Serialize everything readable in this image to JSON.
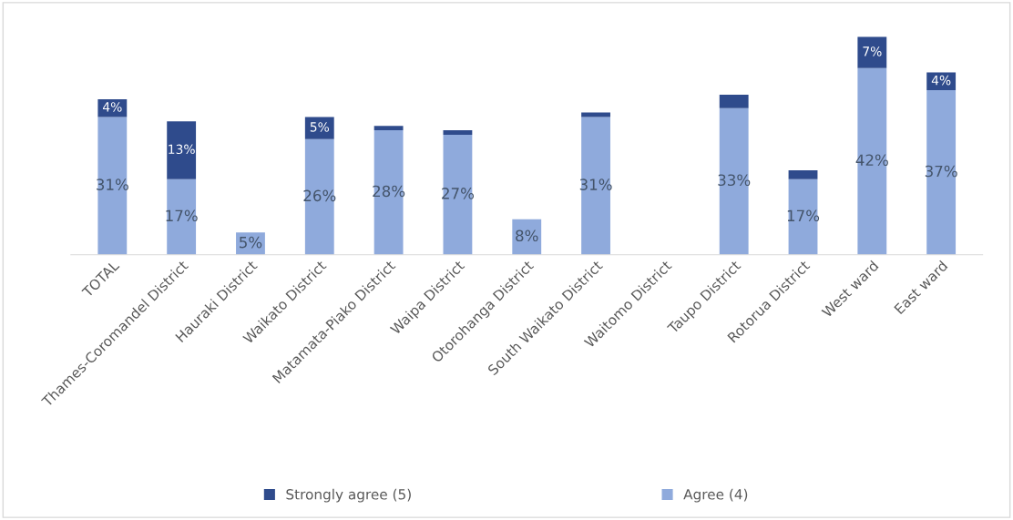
{
  "chart_data": {
    "type": "bar",
    "stacked": true,
    "legend": "bottom",
    "grid": false,
    "categories": [
      "TOTAL",
      "Thames-Coromandel District",
      "Hauraki District",
      "Waikato District",
      "Matamata-Piako District",
      "Waipa District",
      "Otorohanga District",
      "South Waikato District",
      "Waitomo District",
      "Taupo District",
      "Rotorua District",
      "West ward",
      "East ward"
    ],
    "series": [
      {
        "name": "Agree (4)",
        "color": "#8faadc",
        "values": [
          31,
          17,
          5,
          26,
          28,
          27,
          8,
          31,
          0,
          33,
          17,
          42,
          37
        ],
        "value_labels": [
          "31%",
          "17%",
          "5%",
          "26%",
          "28%",
          "27%",
          "8%",
          "31%",
          null,
          "33%",
          "17%",
          "42%",
          "37%"
        ]
      },
      {
        "name": "Strongly agree (5)",
        "color": "#2f4b8c",
        "values": [
          4,
          13,
          0,
          5,
          1,
          1,
          0,
          1,
          0,
          3,
          2,
          7,
          4
        ],
        "value_labels": [
          "4%",
          "13%",
          null,
          "5%",
          null,
          null,
          null,
          null,
          null,
          null,
          null,
          "7%",
          "4%"
        ]
      }
    ]
  }
}
